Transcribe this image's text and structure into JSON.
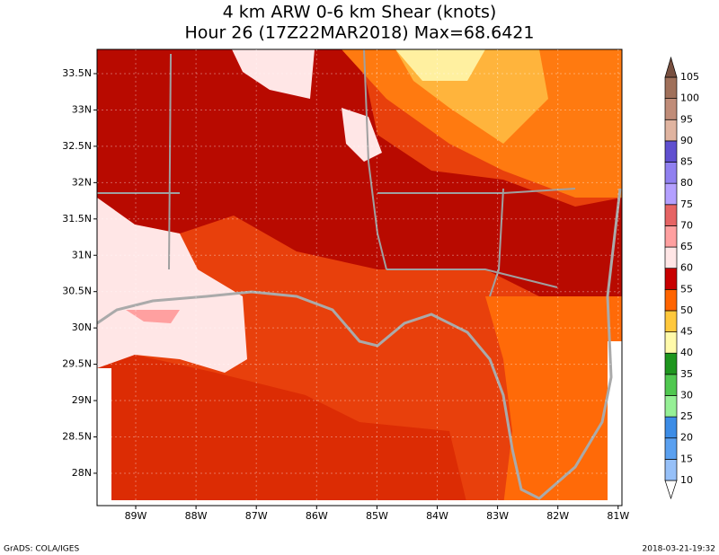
{
  "title": {
    "line1": "4 km ARW 0-6 km Shear (knots)",
    "line2": "Hour 26 (17Z22MAR2018) Max=68.6421"
  },
  "lat_labels": [
    "33.5N",
    "33N",
    "32.5N",
    "32N",
    "31.5N",
    "31N",
    "30.5N",
    "30N",
    "29.5N",
    "29N",
    "28.5N",
    "28N"
  ],
  "lon_labels": [
    "89W",
    "88W",
    "87W",
    "86W",
    "85W",
    "84W",
    "83W",
    "82W",
    "81W"
  ],
  "colorbar": {
    "labels": [
      "10",
      "15",
      "20",
      "25",
      "30",
      "35",
      "40",
      "45",
      "50",
      "55",
      "60",
      "65",
      "70",
      "75",
      "80",
      "85",
      "90",
      "95",
      "100",
      "105"
    ],
    "colors": [
      "#ffffff",
      "#96c0f8",
      "#5aa0f0",
      "#3c8ce6",
      "#96f096",
      "#50c850",
      "#1e961e",
      "#fffaaa",
      "#ffc83c",
      "#ff6400",
      "#c80000",
      "#ffe6e6",
      "#ffa0a0",
      "#e66464",
      "#b4a0ff",
      "#9080f0",
      "#6050d0",
      "#e0b4a0",
      "#c08c78",
      "#a0705a",
      "#785040"
    ]
  },
  "footer": {
    "left": "GrADS: COLA/IGES",
    "right": "2018-03-21-19:32"
  }
}
